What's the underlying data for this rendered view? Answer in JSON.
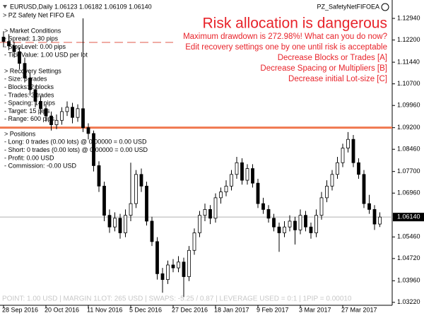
{
  "header": {
    "symbol_line": "EURUSD,Daily  1.06123 1.06182 1.06109 1.06140",
    "ea_line": "> PZ Safety Net FIFO EA",
    "ea_name": "PZ_SafetyNetFIFOEA"
  },
  "alerts": {
    "title": "Risk allocation is dangerous",
    "lines": [
      "Maximum drawdown is 272.98%! What can you do now?",
      "Edit recovery settings one by one until risk is acceptable",
      "Decrease Blocks or Trades [A]",
      "Decrease Spacing or Multipliers [B]",
      "Decrease initial Lot-size [C]"
    ]
  },
  "panel": [
    {
      "heading": "> Market Conditions",
      "items": [
        "- Spread: 1.30 pips",
        "- StopLevel: 0.00 pips",
        "- Tick Value: 1.00 USD per lot"
      ]
    },
    {
      "heading": "> Recovery Settings",
      "items": [
        "- Size: 6 trades",
        "- Blocks: 2 blocks",
        "- Trades: 3 trades",
        "- Spacing: 14 pips",
        "- Target: 15 pips",
        "- Range: 600 pips"
      ]
    },
    {
      "heading": "> Positions",
      "items": [
        "- Long: 0 trades (0.00 lots) @ 0.00000 = 0.00 USD",
        "- Short: 0 trades (0.00 lots) @ 0.00000 = 0.00 USD",
        "- Profit: 0.00 USD",
        "- Commission: -0.00 USD"
      ]
    }
  ],
  "footer": "POINT: 1.00 USD | MARGIN 1LOT: 265 USD | SWAPS: -5.25 / 0.87 | LEVERAGE USED = 0:1 | 1PIP = 0.00010",
  "chart_data": {
    "type": "candlestick",
    "categories": [
      "28 Sep 2016",
      null,
      null,
      null,
      null,
      null,
      null,
      null,
      "20 Oct 2016",
      null,
      null,
      null,
      null,
      null,
      null,
      null,
      "11 Nov 2016",
      null,
      null,
      null,
      null,
      null,
      null,
      null,
      "5 Dec 2016",
      null,
      null,
      null,
      null,
      null,
      null,
      null,
      "27 Dec 2016",
      null,
      null,
      null,
      null,
      null,
      null,
      null,
      "18 Jan 2017",
      null,
      null,
      null,
      null,
      null,
      null,
      null,
      "9 Feb 2017",
      null,
      null,
      null,
      null,
      null,
      null,
      null,
      "3 Mar 2017",
      null,
      null,
      null,
      null,
      null,
      null,
      null,
      "27 Mar 2017",
      null,
      null,
      null,
      null,
      null,
      null,
      null
    ],
    "open": [
      1.123,
      1.1215,
      1.12,
      1.118,
      1.114,
      1.109,
      1.105,
      1.101,
      1.0985,
      1.096,
      1.093,
      1.0945,
      1.0975,
      1.099,
      1.0955,
      1.0985,
      1.092,
      1.09,
      1.079,
      1.072,
      1.062,
      1.058,
      1.061,
      1.056,
      1.062,
      1.066,
      1.076,
      1.072,
      1.06,
      1.053,
      1.042,
      1.04,
      1.045,
      1.044,
      1.046,
      1.041,
      1.05,
      1.056,
      1.062,
      1.064,
      1.061,
      1.068,
      1.07,
      1.072,
      1.076,
      1.08,
      1.074,
      1.078,
      1.073,
      1.066,
      1.064,
      1.061,
      1.058,
      1.056,
      1.058,
      1.06,
      1.057,
      1.062,
      1.058,
      1.056,
      1.062,
      1.068,
      1.072,
      1.076,
      1.08,
      1.085,
      1.088,
      1.08,
      1.076,
      1.066,
      1.064,
      1.059
    ],
    "high": [
      1.125,
      1.124,
      1.1215,
      1.1195,
      1.116,
      1.111,
      1.1065,
      1.103,
      1.1,
      1.0975,
      1.0965,
      1.099,
      1.101,
      1.1005,
      1.1,
      1.1294,
      1.0935,
      1.091,
      1.0805,
      1.0735,
      1.064,
      1.063,
      1.0625,
      1.064,
      1.08,
      1.0775,
      1.078,
      1.0735,
      1.0615,
      1.0545,
      1.044,
      1.0465,
      1.047,
      1.048,
      1.0475,
      1.0515,
      1.0575,
      1.0635,
      1.066,
      1.0655,
      1.0695,
      1.0715,
      1.074,
      1.0775,
      1.082,
      1.0815,
      1.0795,
      1.0795,
      1.0745,
      1.068,
      1.0655,
      1.0625,
      1.0595,
      1.06,
      1.062,
      1.0615,
      1.064,
      1.0635,
      1.0595,
      1.064,
      1.07,
      1.074,
      1.0775,
      1.082,
      1.0865,
      1.0905,
      1.0895,
      1.0815,
      1.0775,
      1.069,
      1.0655,
      1.063
    ],
    "low": [
      1.1195,
      1.1185,
      1.116,
      1.112,
      1.1075,
      1.103,
      1.099,
      1.0965,
      1.094,
      1.091,
      1.0915,
      1.093,
      1.096,
      1.0935,
      1.094,
      1.0905,
      1.088,
      1.077,
      1.07,
      1.06,
      1.056,
      1.0565,
      1.054,
      1.0545,
      1.06,
      1.0645,
      1.07,
      1.0585,
      1.0515,
      1.04,
      1.0355,
      1.0385,
      1.0425,
      1.0425,
      1.034,
      1.0395,
      1.0485,
      1.0545,
      1.06,
      1.059,
      1.0595,
      1.066,
      1.0685,
      1.0705,
      1.0745,
      1.0725,
      1.0725,
      1.0715,
      1.0645,
      1.0625,
      1.0595,
      1.0565,
      1.0495,
      1.0545,
      1.0565,
      1.052,
      1.0555,
      1.0565,
      1.054,
      1.0545,
      1.0605,
      1.0665,
      1.0705,
      1.0745,
      1.0785,
      1.0835,
      1.0785,
      1.0745,
      1.0645,
      1.0625,
      1.057,
      1.058
    ],
    "close": [
      1.1215,
      1.12,
      1.118,
      1.114,
      1.109,
      1.105,
      1.101,
      1.0985,
      1.096,
      1.093,
      1.0945,
      1.0975,
      1.099,
      1.0955,
      1.0985,
      1.092,
      1.09,
      1.079,
      1.072,
      1.062,
      1.058,
      1.061,
      1.056,
      1.062,
      1.066,
      1.076,
      1.072,
      1.06,
      1.053,
      1.042,
      1.04,
      1.045,
      1.044,
      1.046,
      1.041,
      1.05,
      1.056,
      1.062,
      1.064,
      1.061,
      1.068,
      1.07,
      1.072,
      1.076,
      1.08,
      1.074,
      1.078,
      1.073,
      1.066,
      1.064,
      1.061,
      1.058,
      1.056,
      1.058,
      1.06,
      1.057,
      1.062,
      1.058,
      1.056,
      1.062,
      1.068,
      1.072,
      1.076,
      1.08,
      1.085,
      1.088,
      1.08,
      1.076,
      1.066,
      1.064,
      1.059,
      1.0614
    ],
    "up_color": "#ffffff",
    "down_color": "#000000",
    "outline_color": "#000000",
    "ylim": [
      1.0312,
      1.1357
    ],
    "yticks": [
      {
        "value": 1.1294,
        "label": "1.12940"
      },
      {
        "value": 1.122,
        "label": "1.12200"
      },
      {
        "value": 1.1144,
        "label": "1.11440"
      },
      {
        "value": 1.107,
        "label": "1.10700"
      },
      {
        "value": 1.0996,
        "label": "1.09960"
      },
      {
        "value": 1.092,
        "label": "1.09200"
      },
      {
        "value": 1.0846,
        "label": "1.08460"
      },
      {
        "value": 1.077,
        "label": "1.07700"
      },
      {
        "value": 1.0696,
        "label": "1.06960"
      },
      {
        "value": 1.0546,
        "label": "1.05460"
      },
      {
        "value": 1.0472,
        "label": "1.04720"
      },
      {
        "value": 1.0396,
        "label": "1.03960"
      },
      {
        "value": 1.0322,
        "label": "1.03220"
      }
    ],
    "last_price": {
      "value": 1.0614,
      "label": "1.06140"
    },
    "levels": [
      {
        "value": 1.092,
        "color": "#f07850",
        "style": "solid"
      },
      {
        "value": 1.1212,
        "color": "#e05a4a",
        "style": "dashed"
      }
    ]
  }
}
